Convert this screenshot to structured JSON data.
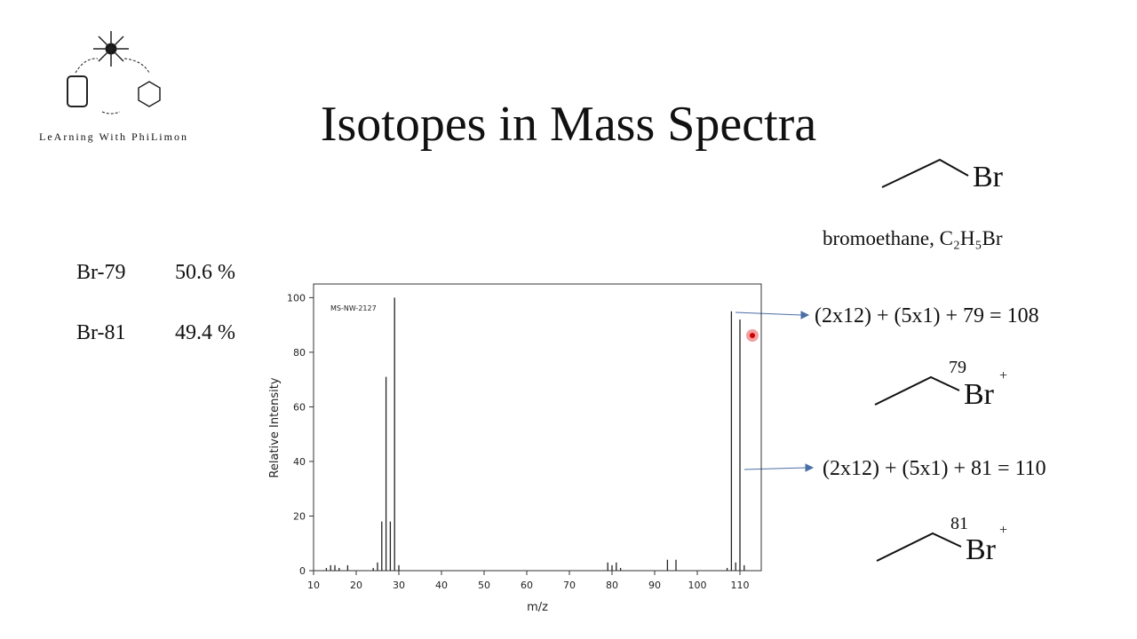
{
  "logo": "LeArning With PhiLimon",
  "title": "Isotopes in Mass Spectra",
  "isotopes": [
    {
      "name": "Br-79",
      "abundance": "50.6 %"
    },
    {
      "name": "Br-81",
      "abundance": "49.4 %"
    }
  ],
  "molecule": {
    "atom": "Br",
    "name": "bromoethane, C₂H₅Br"
  },
  "ions": [
    {
      "equation": "(2x12) + (5x1) + 79 = 108",
      "mass": "79",
      "atom": "Br",
      "charge": "+"
    },
    {
      "equation": "(2x12) + (5x1) + 81 = 110",
      "mass": "81",
      "atom": "Br",
      "charge": "+"
    }
  ],
  "chart_data": {
    "type": "stem",
    "annotation": "MS-NW-2127",
    "x_label": "m/z",
    "y_label": "Relative Intensity",
    "x": [
      13,
      14,
      15,
      16,
      18,
      24,
      25,
      26,
      27,
      28,
      29,
      30,
      79,
      80,
      81,
      82,
      93,
      95,
      107,
      108,
      109,
      110,
      111
    ],
    "values": [
      1,
      2,
      2,
      1,
      2,
      1,
      3,
      18,
      71,
      18,
      100,
      2,
      3,
      2,
      3,
      1,
      4,
      4,
      1,
      95,
      3,
      92,
      2
    ],
    "color": "#222222",
    "xlim": [
      10,
      115
    ],
    "ylim": [
      0,
      105
    ],
    "xticks": [
      10,
      20,
      30,
      40,
      50,
      60,
      70,
      80,
      90,
      100,
      110
    ],
    "yticks": [
      0,
      20,
      40,
      60,
      80,
      100
    ]
  }
}
